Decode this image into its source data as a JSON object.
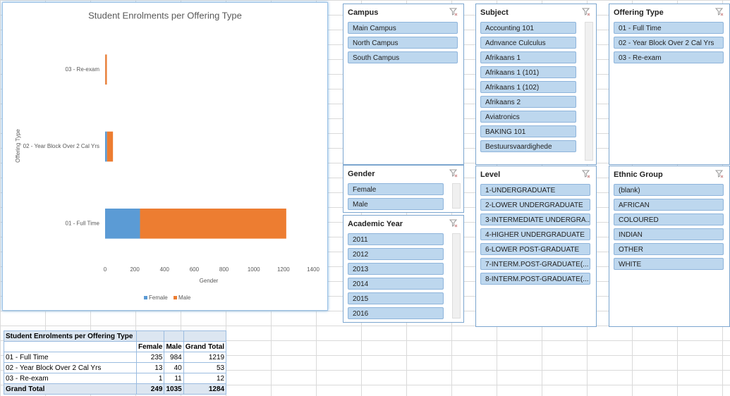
{
  "chart_data": {
    "type": "stacked-hbar",
    "title": "Student Enrolments per Offering Type",
    "y_label": "Offering Type",
    "x_label": "Gender",
    "categories": [
      "01 - Full Time",
      "02 - Year Block Over 2 Cal Yrs",
      "03 - Re-exam"
    ],
    "series": [
      {
        "name": "Female",
        "color": "#5b9bd5",
        "values": [
          235,
          13,
          1
        ]
      },
      {
        "name": "Male",
        "color": "#ed7d31",
        "values": [
          984,
          40,
          11
        ]
      }
    ],
    "xlim": [
      0,
      1400
    ],
    "xticks": [
      0,
      200,
      400,
      600,
      800,
      1000,
      1200,
      1400
    ],
    "legend": "bottom"
  },
  "slicers": [
    {
      "title": "Campus",
      "items": [
        "Main Campus",
        "North Campus",
        "South Campus"
      ]
    },
    {
      "title": "Subject",
      "items": [
        "Accounting 101",
        "Adnvance Culculus",
        "Afrikaans 1",
        "Afrikaans 1 (101)",
        "Afrikaans 1 (102)",
        "Afrikaans 2",
        "Aviatronics",
        "BAKING 101",
        "Bestuursvaardighede"
      ]
    },
    {
      "title": "Offering Type",
      "items": [
        "01 - Full Time",
        "02 - Year Block Over 2 Cal Yrs",
        "03 - Re-exam"
      ]
    },
    {
      "title": "Gender",
      "items": [
        "Female",
        "Male"
      ]
    },
    {
      "title": "Level",
      "items": [
        "1-UNDERGRADUATE",
        "2-LOWER UNDERGRADUATE",
        "3-INTERMEDIATE UNDERGRA...",
        "4-HIGHER UNDERGRADUATE",
        "6-LOWER POST-GRADUATE",
        "7-INTERM.POST-GRADUATE(...",
        "8-INTERM.POST-GRADUATE(..."
      ]
    },
    {
      "title": "Ethnic Group",
      "items": [
        "(blank)",
        "AFRICAN",
        "COLOURED",
        "INDIAN",
        "OTHER",
        "WHITE"
      ]
    },
    {
      "title": "Academic Year",
      "items": [
        "2011",
        "2012",
        "2013",
        "2014",
        "2015",
        "2016"
      ]
    }
  ],
  "pivot_table": {
    "title": "Student Enrolments per Offering Type",
    "headers": [
      "Female",
      "Male",
      "Grand Total"
    ],
    "rows": [
      {
        "label": "01 - Full Time",
        "values": [
          235,
          984,
          1219
        ]
      },
      {
        "label": "02 - Year Block Over 2 Cal Yrs",
        "values": [
          13,
          40,
          53
        ]
      },
      {
        "label": "03 - Re-exam",
        "values": [
          1,
          11,
          12
        ]
      },
      {
        "label": "Grand Total",
        "values": [
          249,
          1035,
          1284
        ]
      }
    ]
  }
}
